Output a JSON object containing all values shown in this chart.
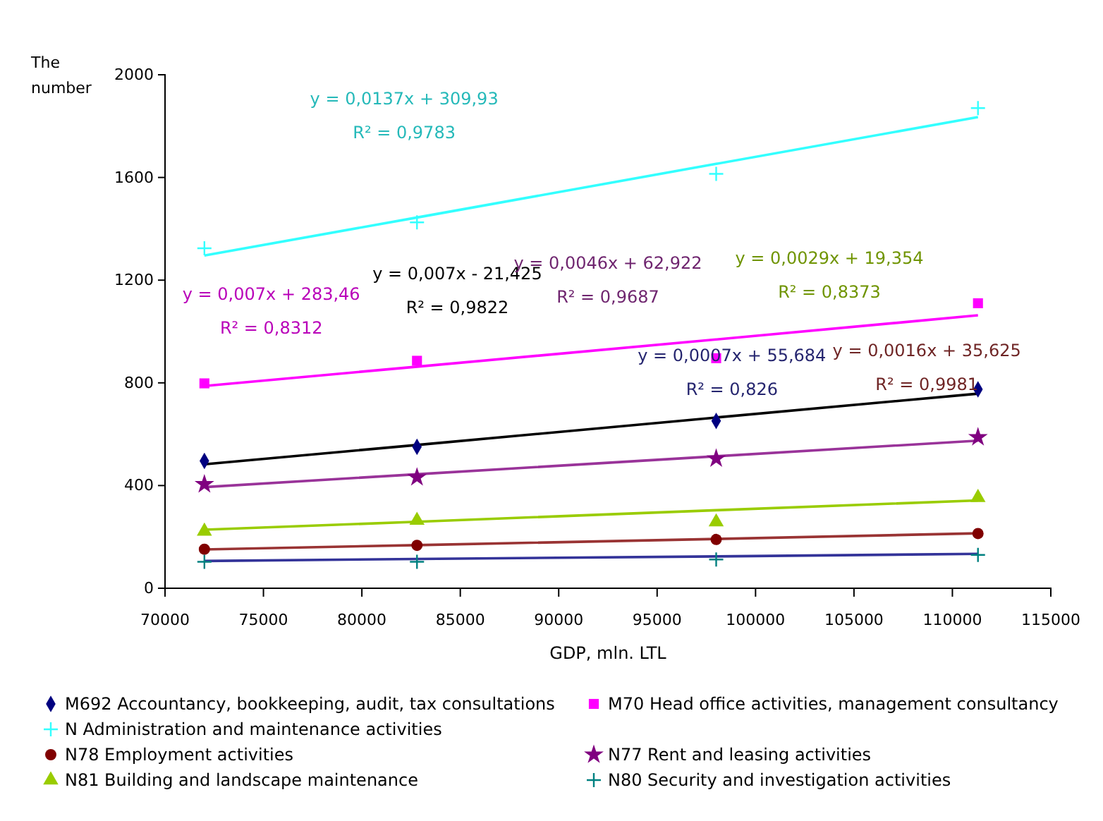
{
  "chart_data": {
    "type": "scatter",
    "xlabel": "GDP, mln. LTL",
    "ylabel": "The number",
    "x": [
      72000,
      82800,
      98000,
      111300
    ],
    "xlim": [
      70000,
      115000
    ],
    "xticks": [
      70000,
      75000,
      80000,
      85000,
      90000,
      95000,
      100000,
      105000,
      110000,
      115000
    ],
    "ylim": [
      0,
      2000
    ],
    "yticks": [
      0,
      400,
      800,
      1200,
      1600,
      2000
    ],
    "grid": false,
    "legend": "bottom",
    "series": [
      {
        "name": "M692 Accountancy, bookkeeping, audit, tax consultations",
        "color": "#000080",
        "marker": "diamond",
        "values": [
          496,
          551,
          652,
          775
        ]
      },
      {
        "name": "N Administration and maintenance activities",
        "color": "#33ffff",
        "marker": "cross",
        "values": [
          1324,
          1425,
          1614,
          1870
        ]
      },
      {
        "name": "N78 Employment activities",
        "color": "#800000",
        "marker": "circle",
        "values": [
          152,
          167,
          190,
          213
        ]
      },
      {
        "name": "N81 Building and landscape maintenance",
        "color": "#99cc00",
        "marker": "triangle",
        "values": [
          222,
          264,
          258,
          353
        ]
      },
      {
        "name": "M70  Head office activities, management consultancy",
        "color": "#ff00ff",
        "marker": "square",
        "values": [
          798,
          886,
          896,
          1110
        ]
      },
      {
        "name": "N77 Rent and leasing activities",
        "color": "#800080",
        "marker": "star",
        "values": [
          405,
          432,
          505,
          588
        ]
      },
      {
        "name": "N80 Security and investigation activities",
        "color": "#008080",
        "marker": "cross",
        "values": [
          103,
          103,
          112,
          130
        ]
      },
      {
        "type": "line",
        "color": "#33ffff",
        "marker": "none",
        "values": [
          1296,
          1444,
          1653,
          1835
        ]
      },
      {
        "type": "line",
        "color": "#ff00ff",
        "marker": "none",
        "values": [
          788,
          863,
          969,
          1063
        ]
      },
      {
        "type": "line",
        "color": "#000000",
        "marker": "none",
        "values": [
          483,
          558,
          665,
          758
        ]
      },
      {
        "type": "line",
        "color": "#993399",
        "marker": "none",
        "values": [
          394,
          444,
          514,
          575
        ]
      },
      {
        "type": "line",
        "color": "#99cc00",
        "marker": "none",
        "values": [
          228,
          259,
          304,
          342
        ]
      },
      {
        "type": "line",
        "color": "#333399",
        "marker": "none",
        "values": [
          106,
          114,
          124,
          134
        ]
      },
      {
        "type": "line",
        "color": "#993333",
        "marker": "none",
        "values": [
          151,
          168,
          192,
          214
        ]
      }
    ],
    "annotations": [
      "y = 0,0137x + 309,93\nR² = 0,9783",
      "y = 0,007x + 283,46\nR² = 0,8312",
      "y = 0,007x - 21,425\nR² = 0,9822",
      "y = 0,0046x + 62,922\nR² = 0,9687",
      "y = 0,0029x + 19,354\nR² = 0,8373",
      "y = 0,0007x + 55,684\nR² = 0,826",
      "y = 0,0016x + 35,625\nR² = 0,9981"
    ]
  }
}
